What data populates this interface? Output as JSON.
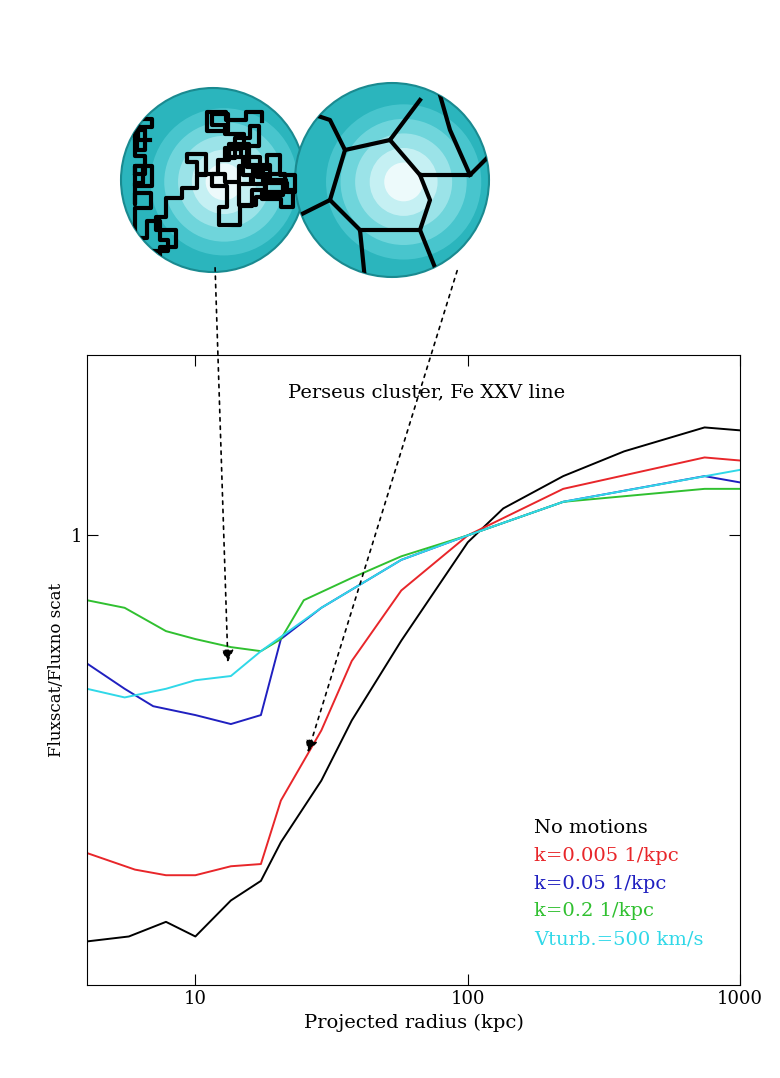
{
  "chart_data": {
    "type": "line",
    "title": "Perseus cluster, Fe XXV line",
    "x_label": "Projected radius (kpc)",
    "y_label": "Fluxscat/Fluxno scat",
    "log": true,
    "xlim": [
      4,
      1000
    ],
    "ylim": [
      0.52,
      1.3
    ],
    "xticks": [
      10,
      100,
      1000
    ],
    "yticks": [
      1
    ],
    "legend": "lower right",
    "series": [
      {
        "name": "No motions",
        "color": "#000000",
        "x": [
          4.0,
          5.7,
          7.8,
          10,
          13.5,
          17.4,
          20.6,
          29,
          37.5,
          57,
          100,
          135,
          224,
          375,
          740,
          1000
        ],
        "values": [
          0.554,
          0.558,
          0.57,
          0.558,
          0.588,
          0.605,
          0.64,
          0.7,
          0.764,
          0.858,
          0.99,
          1.04,
          1.09,
          1.13,
          1.17,
          1.165
        ]
      },
      {
        "name": "k=0.005 1/kpc",
        "color": "#e8262a",
        "x": [
          4,
          6,
          7.8,
          10,
          13.5,
          17.4,
          20.6,
          29,
          37.5,
          57,
          100,
          224,
          740,
          1000
        ],
        "values": [
          0.63,
          0.615,
          0.61,
          0.61,
          0.618,
          0.62,
          0.68,
          0.753,
          0.833,
          0.923,
          1.0,
          1.07,
          1.12,
          1.115
        ]
      },
      {
        "name": "k=0.05 1/kpc",
        "color": "#2020c0",
        "x": [
          4,
          5.5,
          7,
          10,
          13.5,
          17.4,
          20.6,
          29,
          57,
          100,
          224,
          740,
          1000
        ],
        "values": [
          0.83,
          0.8,
          0.78,
          0.77,
          0.76,
          0.77,
          0.86,
          0.9,
          0.965,
          1.0,
          1.05,
          1.09,
          1.08
        ]
      },
      {
        "name": "k=0.2 1/kpc",
        "color": "#30c030",
        "x": [
          4,
          5.5,
          7.8,
          10,
          13.5,
          17.4,
          20.6,
          25,
          37.5,
          57,
          100,
          224,
          740,
          1000
        ],
        "values": [
          0.91,
          0.9,
          0.87,
          0.86,
          0.85,
          0.845,
          0.86,
          0.91,
          0.94,
          0.97,
          1.0,
          1.05,
          1.07,
          1.07
        ]
      },
      {
        "name": "Vturb.=500 km/s",
        "color": "#30d8e8",
        "x": [
          4,
          5.5,
          7.8,
          10,
          13.5,
          17.4,
          29,
          57,
          100,
          224,
          1000
        ],
        "values": [
          0.8,
          0.79,
          0.8,
          0.81,
          0.815,
          0.845,
          0.9,
          0.965,
          1.0,
          1.05,
          1.1
        ]
      }
    ]
  }
}
